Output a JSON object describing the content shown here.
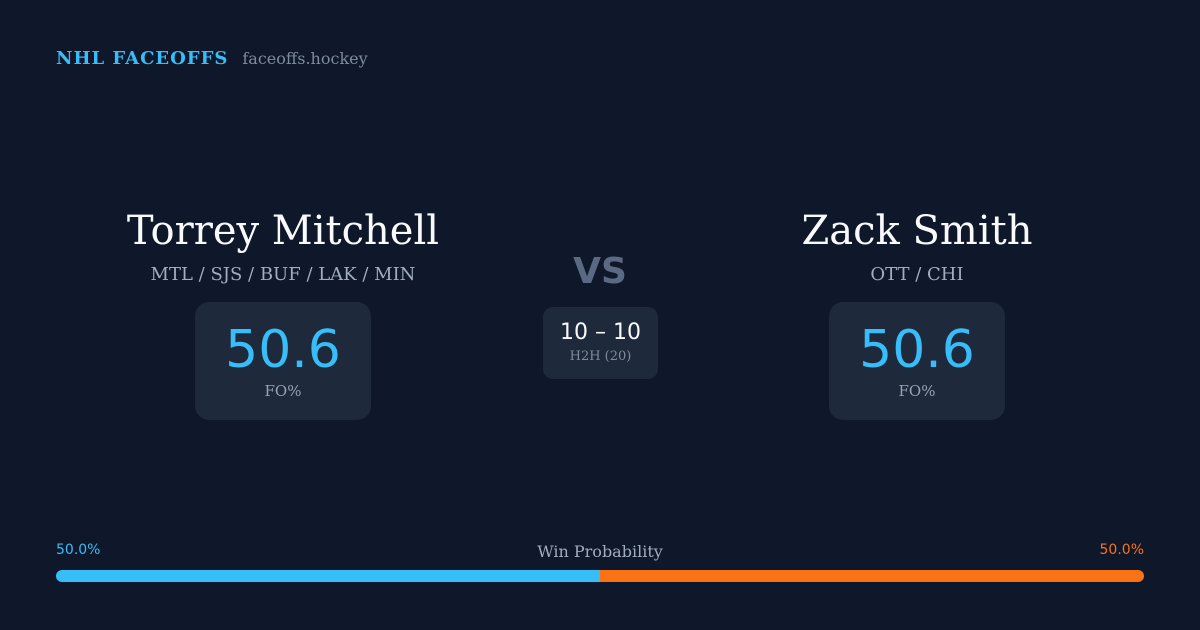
{
  "brand": {
    "title": "NHL FACEOFFS",
    "site": "faceoffs.hockey"
  },
  "colors": {
    "background": "#0f172a",
    "card": "#1e293b",
    "home_accent": "#38bdf8",
    "away_accent": "#f97316"
  },
  "player_left": {
    "name": "Torrey Mitchell",
    "teams": "MTL / SJS / BUF / LAK / MIN",
    "fo_pct": "50.6",
    "fo_label": "FO%"
  },
  "versus": "VS",
  "h2h": {
    "score": "10 – 10",
    "label": "H2H (20)"
  },
  "player_right": {
    "name": "Zack Smith",
    "teams": "OTT / CHI",
    "fo_pct": "50.6",
    "fo_label": "FO%"
  },
  "win_probability": {
    "title": "Win Probability",
    "left_label": "50.0%",
    "right_label": "50.0%",
    "left_fraction": 0.5,
    "right_fraction": 0.5
  }
}
